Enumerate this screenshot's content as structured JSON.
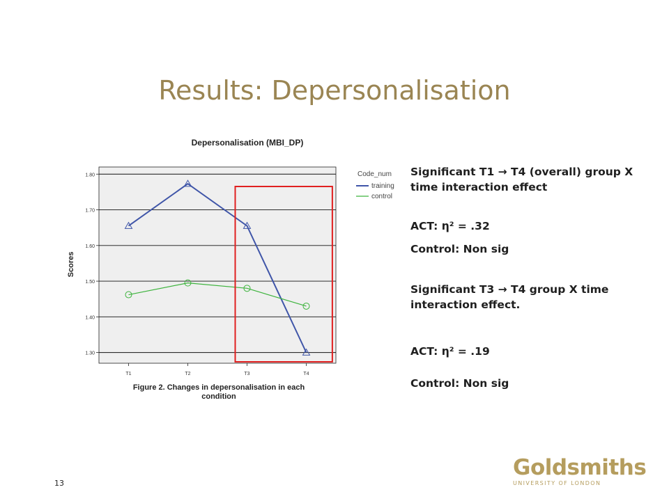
{
  "slide": {
    "title": "Results: Depersonalisation",
    "page_number": "13"
  },
  "chart_data": {
    "type": "line",
    "title": "Depersonalisation (MBI_DP)",
    "ylabel": "Scores",
    "xlabel": "",
    "caption": "Figure 2. Changes in depersonalisation  in each condition",
    "caption_lines": [
      "Figure 2. Changes in depersonalisation  in each",
      "condition"
    ],
    "categories": [
      "T1",
      "T2",
      "T3",
      "T4"
    ],
    "ylim": [
      1.27,
      1.82
    ],
    "yticks": [
      "1.30",
      "1.40",
      "1.50",
      "1.60",
      "1.70",
      "1.80"
    ],
    "grid": true,
    "legend": {
      "title": "Code_num",
      "position": "right"
    },
    "series": [
      {
        "name": "training",
        "values": [
          1.655,
          1.773,
          1.655,
          1.3
        ],
        "color": "#3f55a8",
        "marker": "triangle"
      },
      {
        "name": "control",
        "values": [
          1.462,
          1.495,
          1.48,
          1.43
        ],
        "color": "#3db33d",
        "marker": "circle"
      }
    ],
    "highlight": {
      "categories": [
        "T3",
        "T4"
      ],
      "color": "#e02020"
    },
    "plot_background": "#efefef"
  },
  "findings": [
    {
      "text": "Significant T1 → T4 (overall) group X time interaction effect"
    },
    {
      "text": "ACT: η² = .32"
    },
    {
      "text": "Control: Non sig"
    },
    {
      "text": "Significant T3 → T4 group X time interaction effect."
    },
    {
      "text": "ACT: η² = .19"
    },
    {
      "text": "Control: Non sig"
    }
  ],
  "logo": {
    "wordmark": "Goldsmiths",
    "subtitle": "UNIVERSITY OF LONDON",
    "color": "#b59d5e"
  }
}
